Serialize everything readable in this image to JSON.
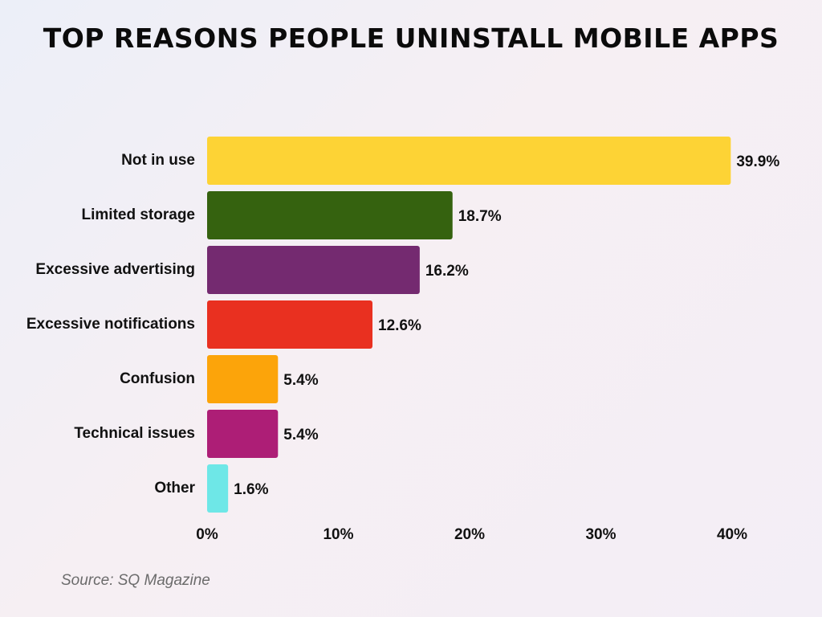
{
  "title": "TOP REASONS PEOPLE UNINSTALL MOBILE APPS",
  "source": "Source: SQ Magazine",
  "chart_data": {
    "type": "bar",
    "orientation": "horizontal",
    "title": "TOP REASONS PEOPLE UNINSTALL MOBILE APPS",
    "categories": [
      "Not in use",
      "Limited storage",
      "Excessive advertising",
      "Excessive notifications",
      "Confusion",
      "Technical issues",
      "Other"
    ],
    "values": [
      39.9,
      18.7,
      16.2,
      12.6,
      5.4,
      5.4,
      1.6
    ],
    "value_labels": [
      "39.9%",
      "18.7%",
      "16.2%",
      "12.6%",
      "5.4%",
      "5.4%",
      "1.6%"
    ],
    "colors": [
      "#fdd335",
      "#35620f",
      "#742a70",
      "#e93020",
      "#fca40a",
      "#ad1e76",
      "#6ee7e7"
    ],
    "xlim": [
      0,
      40
    ],
    "xticks": [
      0,
      10,
      20,
      30,
      40
    ],
    "xtick_labels": [
      "0%",
      "10%",
      "20%",
      "30%",
      "40%"
    ],
    "xlabel": "",
    "ylabel": "",
    "grid": false,
    "legend": "none"
  }
}
